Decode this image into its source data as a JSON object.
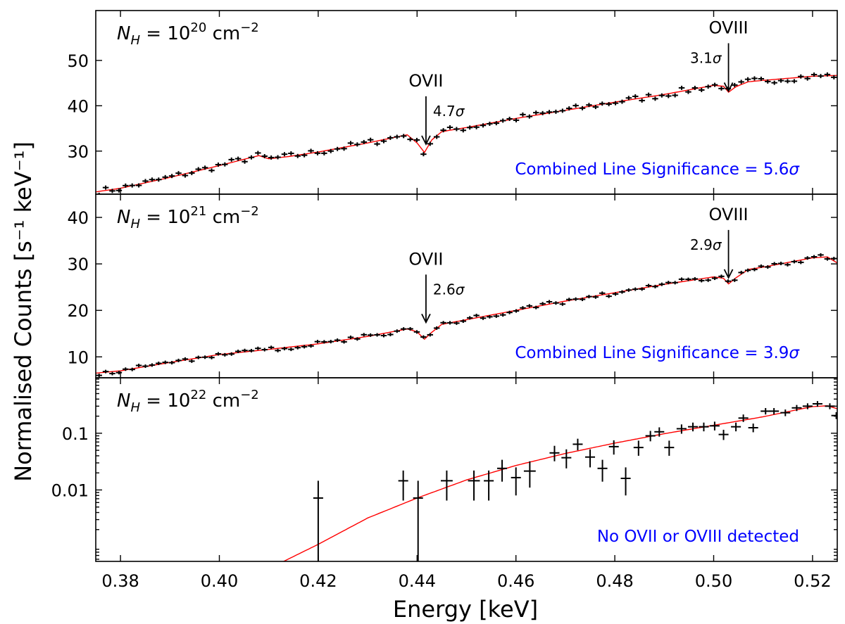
{
  "chart_data": {
    "type": "scatter",
    "xlabel": "Energy [keV]",
    "ylabel": "Normalised Counts [s⁻¹ keV⁻¹]",
    "xlim": [
      0.375,
      0.525
    ],
    "xticks": [
      "0.38",
      "0.40",
      "0.42",
      "0.44",
      "0.46",
      "0.48",
      "0.50",
      "0.52"
    ],
    "xtick_values": [
      0.38,
      0.4,
      0.42,
      0.44,
      0.46,
      0.48,
      0.5,
      0.52
    ],
    "panels": [
      {
        "label_base": "N",
        "label_sub": "H",
        "label_eq": " = 10",
        "label_exp": "20",
        "label_unit": " cm",
        "label_unit_exp": "−2",
        "scale": "linear",
        "ylim": [
          20.5,
          61
        ],
        "yticks": [
          "30",
          "40",
          "50"
        ],
        "ytick_values": [
          30,
          40,
          50
        ],
        "model": {
          "anchors": [
            [
              0.375,
              21.0
            ],
            [
              0.38,
              21.8
            ],
            [
              0.39,
              24.2
            ],
            [
              0.4,
              26.8
            ],
            [
              0.405,
              28.2
            ],
            [
              0.408,
              29.0
            ],
            [
              0.41,
              28.3
            ],
            [
              0.414,
              28.8
            ],
            [
              0.42,
              29.8
            ],
            [
              0.43,
              31.8
            ],
            [
              0.438,
              33.6
            ],
            [
              0.44,
              31.8
            ],
            [
              0.4415,
              29.7
            ],
            [
              0.443,
              32.5
            ],
            [
              0.445,
              34.3
            ],
            [
              0.45,
              35.2
            ],
            [
              0.46,
              37.2
            ],
            [
              0.47,
              39.0
            ],
            [
              0.48,
              40.8
            ],
            [
              0.49,
              42.5
            ],
            [
              0.495,
              43.5
            ],
            [
              0.5,
              44.5
            ],
            [
              0.502,
              44.3
            ],
            [
              0.503,
              43.0
            ],
            [
              0.5045,
              44.2
            ],
            [
              0.507,
              45.3
            ],
            [
              0.51,
              45.6
            ],
            [
              0.52,
              46.5
            ],
            [
              0.525,
              46.7
            ]
          ],
          "noise": 0.75,
          "width": 3.0
        },
        "lines": [
          {
            "label": "OVII",
            "sigma_value": "4.7",
            "sigma_symbol": "σ",
            "energy": 0.4418,
            "y_tip": 30.3
          },
          {
            "label": "OVIII",
            "sigma_value": "3.1",
            "sigma_symbol": "σ",
            "energy": 0.503,
            "y_tip": 42.0
          }
        ],
        "significance_text": "Combined Line Significance = 5.6",
        "significance_symbol": "σ"
      },
      {
        "label_base": "N",
        "label_sub": "H",
        "label_eq": " = 10",
        "label_exp": "21",
        "label_unit": " cm",
        "label_unit_exp": "−2",
        "scale": "linear",
        "ylim": [
          5.5,
          45
        ],
        "yticks": [
          "10",
          "20",
          "30",
          "40"
        ],
        "ytick_values": [
          10,
          20,
          30,
          40
        ],
        "model": {
          "anchors": [
            [
              0.375,
              6.5
            ],
            [
              0.38,
              7.0
            ],
            [
              0.39,
              8.8
            ],
            [
              0.4,
              10.5
            ],
            [
              0.41,
              11.6
            ],
            [
              0.42,
              12.8
            ],
            [
              0.43,
              14.4
            ],
            [
              0.438,
              16.0
            ],
            [
              0.44,
              15.4
            ],
            [
              0.4415,
              13.8
            ],
            [
              0.443,
              15.3
            ],
            [
              0.445,
              17.0
            ],
            [
              0.45,
              18.0
            ],
            [
              0.46,
              20.0
            ],
            [
              0.47,
              22.0
            ],
            [
              0.48,
              23.8
            ],
            [
              0.49,
              25.6
            ],
            [
              0.5,
              27.2
            ],
            [
              0.502,
              26.9
            ],
            [
              0.503,
              25.7
            ],
            [
              0.5045,
              27.0
            ],
            [
              0.507,
              28.8
            ],
            [
              0.51,
              29.3
            ],
            [
              0.52,
              31.3
            ],
            [
              0.523,
              31.5
            ],
            [
              0.525,
              30.2
            ]
          ],
          "noise": 0.55,
          "width": 2.5
        },
        "lines": [
          {
            "label": "OVII",
            "sigma_value": "2.6",
            "sigma_symbol": "σ",
            "energy": 0.4418,
            "y_tip": 16.2
          },
          {
            "label": "OVIII",
            "sigma_value": "2.9",
            "sigma_symbol": "σ",
            "energy": 0.503,
            "y_tip": 25.8
          }
        ],
        "significance_text": "Combined Line Significance = 3.9",
        "significance_symbol": "σ"
      },
      {
        "label_base": "N",
        "label_sub": "H",
        "label_eq": " = 10",
        "label_exp": "22",
        "label_unit": " cm",
        "label_unit_exp": "−2",
        "scale": "log",
        "ylim": [
          0.00055,
          0.95
        ],
        "yticks": [
          "0.01",
          "0.1"
        ],
        "ytick_values": [
          0.01,
          0.1
        ],
        "model": {
          "anchors": [
            [
              0.413,
              0.00055
            ],
            [
              0.42,
              0.0011
            ],
            [
              0.43,
              0.0032
            ],
            [
              0.44,
              0.0072
            ],
            [
              0.45,
              0.015
            ],
            [
              0.46,
              0.027
            ],
            [
              0.47,
              0.044
            ],
            [
              0.48,
              0.067
            ],
            [
              0.49,
              0.098
            ],
            [
              0.5,
              0.138
            ],
            [
              0.51,
              0.195
            ],
            [
              0.52,
              0.295
            ],
            [
              0.523,
              0.305
            ],
            [
              0.525,
              0.27
            ]
          ]
        },
        "points": [
          {
            "x": 0.42,
            "y": 0.0072,
            "xerr": 0.001,
            "ylo": 0.0004,
            "yhi": 0.0145
          },
          {
            "x": 0.4372,
            "y": 0.0145,
            "xerr": 0.001,
            "ylo": 0.0065,
            "yhi": 0.022
          },
          {
            "x": 0.4402,
            "y": 0.0072,
            "xerr": 0.001,
            "ylo": 0.0004,
            "yhi": 0.0145
          },
          {
            "x": 0.446,
            "y": 0.0145,
            "xerr": 0.0012,
            "ylo": 0.0065,
            "yhi": 0.022
          },
          {
            "x": 0.4515,
            "y": 0.0145,
            "xerr": 0.0012,
            "ylo": 0.0065,
            "yhi": 0.022
          },
          {
            "x": 0.4545,
            "y": 0.0145,
            "xerr": 0.001,
            "ylo": 0.0065,
            "yhi": 0.022
          },
          {
            "x": 0.4572,
            "y": 0.024,
            "xerr": 0.001,
            "ylo": 0.014,
            "yhi": 0.034
          },
          {
            "x": 0.46,
            "y": 0.0165,
            "xerr": 0.001,
            "ylo": 0.008,
            "yhi": 0.025
          },
          {
            "x": 0.4628,
            "y": 0.0215,
            "xerr": 0.0012,
            "ylo": 0.011,
            "yhi": 0.032
          },
          {
            "x": 0.4678,
            "y": 0.045,
            "xerr": 0.001,
            "ylo": 0.032,
            "yhi": 0.06
          },
          {
            "x": 0.4702,
            "y": 0.037,
            "xerr": 0.001,
            "ylo": 0.024,
            "yhi": 0.052
          },
          {
            "x": 0.4725,
            "y": 0.064,
            "xerr": 0.001,
            "ylo": 0.05,
            "yhi": 0.08
          },
          {
            "x": 0.475,
            "y": 0.038,
            "xerr": 0.001,
            "ylo": 0.025,
            "yhi": 0.052
          },
          {
            "x": 0.4775,
            "y": 0.024,
            "xerr": 0.001,
            "ylo": 0.014,
            "yhi": 0.034
          },
          {
            "x": 0.4798,
            "y": 0.058,
            "xerr": 0.001,
            "ylo": 0.042,
            "yhi": 0.075
          },
          {
            "x": 0.4822,
            "y": 0.016,
            "xerr": 0.001,
            "ylo": 0.008,
            "yhi": 0.025
          },
          {
            "x": 0.4848,
            "y": 0.056,
            "xerr": 0.001,
            "ylo": 0.04,
            "yhi": 0.074
          },
          {
            "x": 0.4872,
            "y": 0.09,
            "xerr": 0.001,
            "ylo": 0.072,
            "yhi": 0.11
          },
          {
            "x": 0.489,
            "y": 0.106,
            "xerr": 0.001,
            "ylo": 0.087,
            "yhi": 0.127
          },
          {
            "x": 0.491,
            "y": 0.056,
            "xerr": 0.001,
            "ylo": 0.04,
            "yhi": 0.074
          },
          {
            "x": 0.4935,
            "y": 0.12,
            "xerr": 0.001,
            "ylo": 0.098,
            "yhi": 0.143
          },
          {
            "x": 0.4958,
            "y": 0.13,
            "xerr": 0.001,
            "ylo": 0.108,
            "yhi": 0.154
          },
          {
            "x": 0.498,
            "y": 0.13,
            "xerr": 0.001,
            "ylo": 0.108,
            "yhi": 0.154
          },
          {
            "x": 0.5002,
            "y": 0.135,
            "xerr": 0.001,
            "ylo": 0.112,
            "yhi": 0.16
          },
          {
            "x": 0.502,
            "y": 0.095,
            "xerr": 0.001,
            "ylo": 0.076,
            "yhi": 0.115
          },
          {
            "x": 0.5045,
            "y": 0.13,
            "xerr": 0.001,
            "ylo": 0.108,
            "yhi": 0.154
          },
          {
            "x": 0.506,
            "y": 0.185,
            "xerr": 0.001,
            "ylo": 0.158,
            "yhi": 0.214
          },
          {
            "x": 0.508,
            "y": 0.125,
            "xerr": 0.001,
            "ylo": 0.104,
            "yhi": 0.148
          },
          {
            "x": 0.5105,
            "y": 0.245,
            "xerr": 0.001,
            "ylo": 0.214,
            "yhi": 0.278
          },
          {
            "x": 0.5122,
            "y": 0.245,
            "xerr": 0.001,
            "ylo": 0.214,
            "yhi": 0.278
          },
          {
            "x": 0.5145,
            "y": 0.23,
            "xerr": 0.001,
            "ylo": 0.2,
            "yhi": 0.262
          },
          {
            "x": 0.5168,
            "y": 0.28,
            "xerr": 0.001,
            "ylo": 0.246,
            "yhi": 0.315
          },
          {
            "x": 0.519,
            "y": 0.3,
            "xerr": 0.001,
            "ylo": 0.265,
            "yhi": 0.337
          },
          {
            "x": 0.521,
            "y": 0.33,
            "xerr": 0.001,
            "ylo": 0.293,
            "yhi": 0.369
          },
          {
            "x": 0.5235,
            "y": 0.3,
            "xerr": 0.001,
            "ylo": 0.265,
            "yhi": 0.337
          },
          {
            "x": 0.5248,
            "y": 0.205,
            "xerr": 0.001,
            "ylo": 0.178,
            "yhi": 0.235
          }
        ],
        "lines": [],
        "significance_text": "No OVII or OVIII detected",
        "significance_symbol": ""
      }
    ]
  },
  "colors": {
    "data": "#000000",
    "model": "#ff0000",
    "annotation": "#0000ff"
  }
}
